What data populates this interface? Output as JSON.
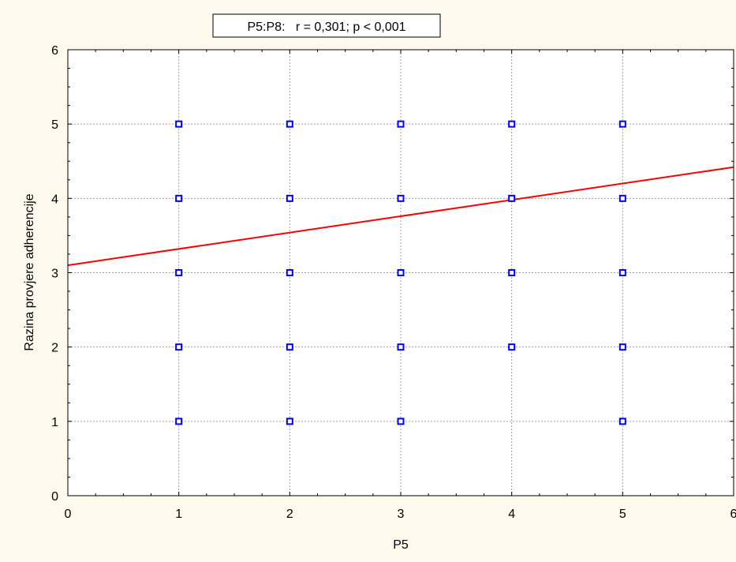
{
  "chart_data": {
    "type": "scatter",
    "title": "P5:P8:   r = 0,301; p < 0,001",
    "xlabel": "P5",
    "ylabel": "Razina provjere adherencije",
    "xlim": [
      0,
      6
    ],
    "ylim": [
      0,
      6
    ],
    "xticks": [
      "0",
      "1",
      "2",
      "3",
      "4",
      "5",
      "6"
    ],
    "yticks": [
      "0",
      "1",
      "2",
      "3",
      "4",
      "5",
      "6"
    ],
    "grid": true,
    "points": [
      {
        "x": 1,
        "y": 5
      },
      {
        "x": 1,
        "y": 4
      },
      {
        "x": 1,
        "y": 3
      },
      {
        "x": 1,
        "y": 2
      },
      {
        "x": 1,
        "y": 1
      },
      {
        "x": 2,
        "y": 5
      },
      {
        "x": 2,
        "y": 4
      },
      {
        "x": 2,
        "y": 3
      },
      {
        "x": 2,
        "y": 2
      },
      {
        "x": 2,
        "y": 1
      },
      {
        "x": 3,
        "y": 5
      },
      {
        "x": 3,
        "y": 4
      },
      {
        "x": 3,
        "y": 3
      },
      {
        "x": 3,
        "y": 2
      },
      {
        "x": 3,
        "y": 1
      },
      {
        "x": 4,
        "y": 5
      },
      {
        "x": 4,
        "y": 4
      },
      {
        "x": 4,
        "y": 3
      },
      {
        "x": 4,
        "y": 2
      },
      {
        "x": 5,
        "y": 5
      },
      {
        "x": 5,
        "y": 4
      },
      {
        "x": 5,
        "y": 3
      },
      {
        "x": 5,
        "y": 2
      },
      {
        "x": 5,
        "y": 1
      }
    ],
    "regression_line": {
      "x": [
        0,
        6
      ],
      "y": [
        3.1,
        4.42
      ]
    },
    "colors": {
      "background": "#fdf9ec",
      "plot_area": "#ffffff",
      "points": "#0000ff",
      "regression": "#ff0000",
      "grid": "#a0a0a0"
    }
  }
}
